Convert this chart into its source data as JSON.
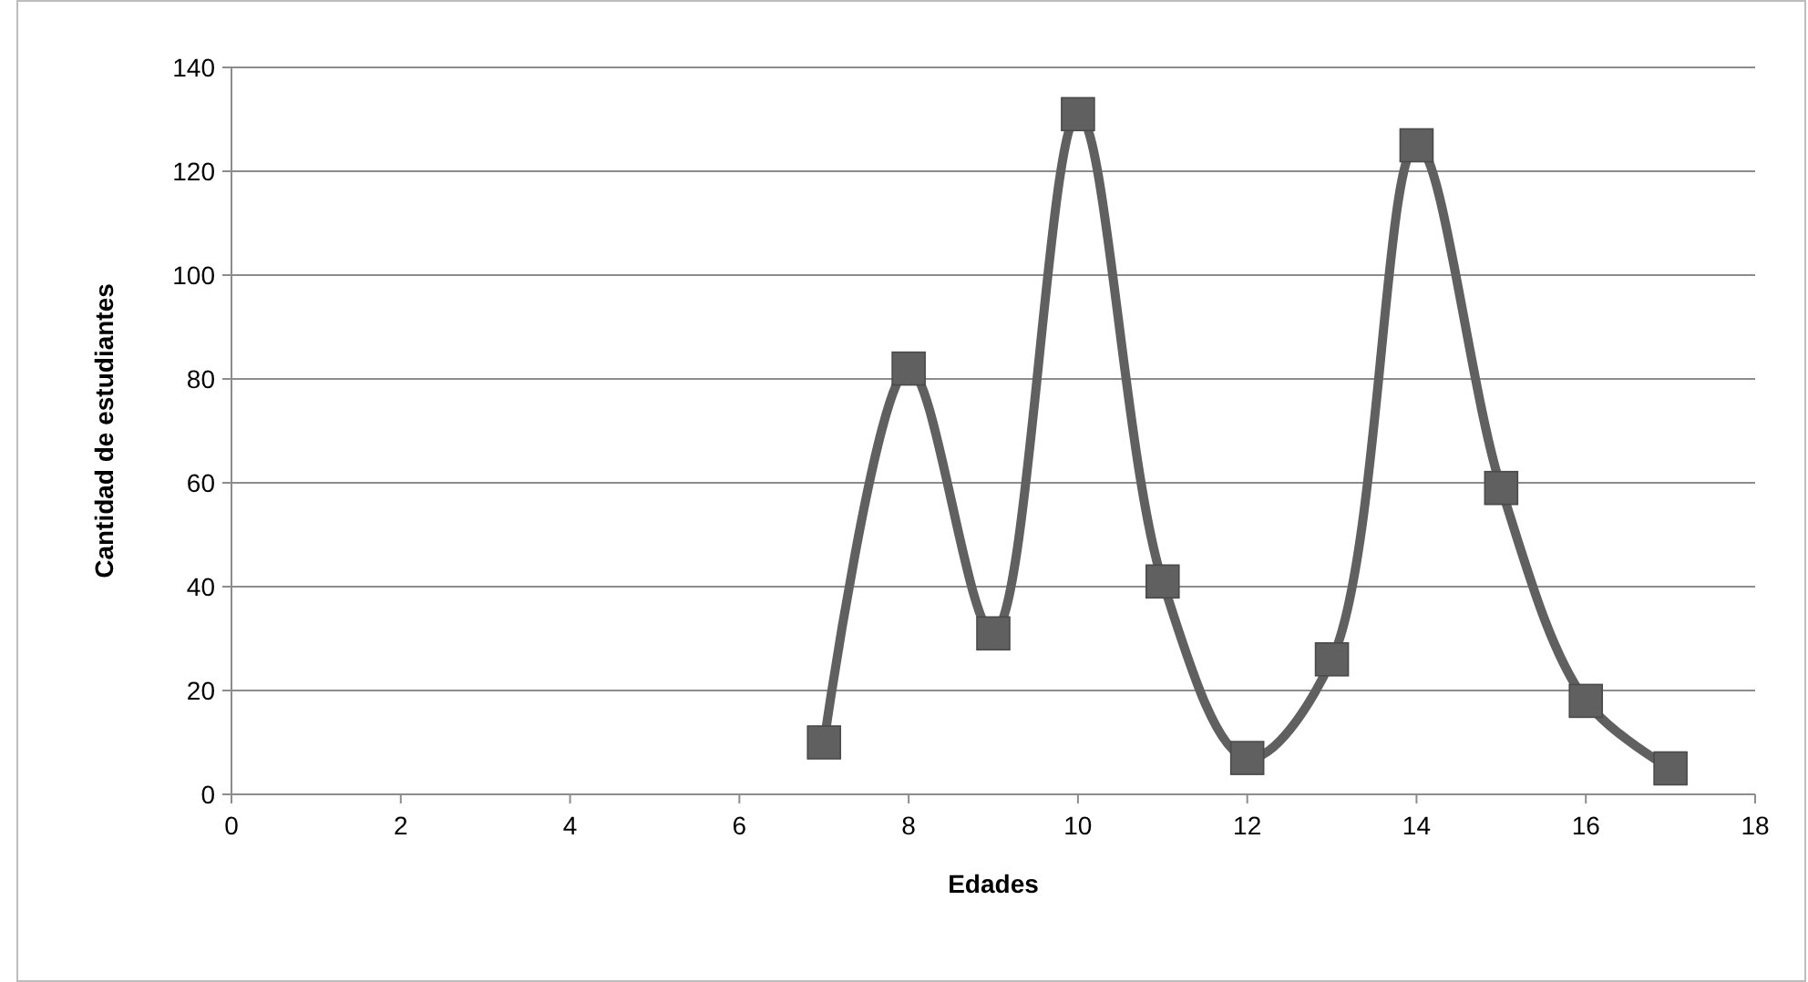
{
  "chart_data": {
    "type": "line",
    "xlabel": "Edades",
    "ylabel": "Cantidad de estudiantes",
    "x": [
      7,
      8,
      9,
      10,
      11,
      12,
      13,
      14,
      15,
      16,
      17
    ],
    "series": [
      {
        "color": "#606060",
        "values": [
          10,
          82,
          31,
          131,
          41,
          7,
          26,
          125,
          59,
          18,
          5
        ]
      }
    ],
    "xlim": [
      0,
      18
    ],
    "xticks": [
      0,
      2,
      4,
      6,
      8,
      10,
      12,
      14,
      16,
      18
    ],
    "ylim": [
      0,
      140
    ],
    "yticks": [
      0,
      20,
      40,
      60,
      80,
      100,
      120,
      140
    ],
    "grid": "y",
    "marker": "square",
    "line_style": "solid"
  }
}
